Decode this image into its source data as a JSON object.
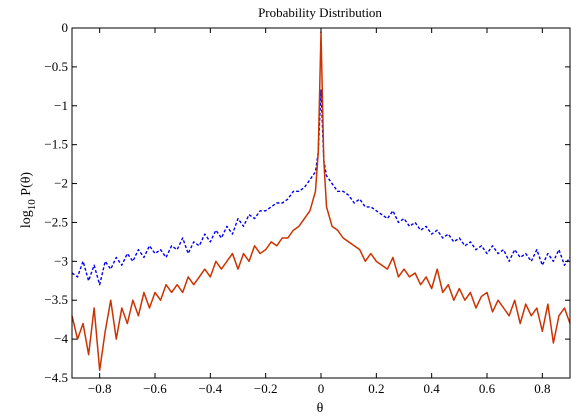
{
  "chart_data": {
    "type": "line",
    "title": "Probability Distribution",
    "xlabel": "θ",
    "ylabel_main": "log",
    "ylabel_sub": "10",
    "ylabel_rest": " P(θ)",
    "xlim": [
      -0.9,
      0.9
    ],
    "ylim": [
      -4.5,
      0
    ],
    "x_ticks": [
      -0.8,
      -0.6,
      -0.4,
      -0.2,
      0,
      0.2,
      0.4,
      0.6,
      0.8
    ],
    "x_tick_labels": [
      "−0.8",
      "−0.6",
      "−0.4",
      "−0.2",
      "0",
      "0.2",
      "0.4",
      "0.6",
      "0.8"
    ],
    "y_ticks": [
      0,
      -0.5,
      -1,
      -1.5,
      -2,
      -2.5,
      -3,
      -3.5,
      -4,
      -4.5
    ],
    "y_tick_labels": [
      "0",
      "−0.5",
      "−1",
      "−1.5",
      "−2",
      "−2.5",
      "−3",
      "−3.5",
      "−4",
      "−4.5"
    ],
    "grid": false,
    "series": [
      {
        "color": "#0000ee",
        "style": "dashed",
        "x": [
          -0.9,
          -0.88,
          -0.86,
          -0.84,
          -0.82,
          -0.8,
          -0.78,
          -0.76,
          -0.74,
          -0.72,
          -0.7,
          -0.68,
          -0.66,
          -0.64,
          -0.62,
          -0.6,
          -0.58,
          -0.56,
          -0.54,
          -0.52,
          -0.5,
          -0.48,
          -0.46,
          -0.44,
          -0.42,
          -0.4,
          -0.38,
          -0.36,
          -0.34,
          -0.32,
          -0.3,
          -0.28,
          -0.26,
          -0.24,
          -0.22,
          -0.2,
          -0.18,
          -0.16,
          -0.14,
          -0.12,
          -0.1,
          -0.08,
          -0.06,
          -0.04,
          -0.02,
          -0.01,
          0,
          0.01,
          0.02,
          0.04,
          0.06,
          0.08,
          0.1,
          0.12,
          0.14,
          0.16,
          0.18,
          0.2,
          0.22,
          0.24,
          0.26,
          0.28,
          0.3,
          0.32,
          0.34,
          0.36,
          0.38,
          0.4,
          0.42,
          0.44,
          0.46,
          0.48,
          0.5,
          0.52,
          0.54,
          0.56,
          0.58,
          0.6,
          0.62,
          0.64,
          0.66,
          0.68,
          0.7,
          0.72,
          0.74,
          0.76,
          0.78,
          0.8,
          0.82,
          0.84,
          0.86,
          0.88,
          0.9
        ],
        "y": [
          -3.15,
          -3.2,
          -3.0,
          -3.25,
          -3.05,
          -3.3,
          -3.0,
          -3.1,
          -2.95,
          -3.05,
          -2.9,
          -3.0,
          -2.85,
          -2.95,
          -2.8,
          -2.9,
          -2.85,
          -2.95,
          -2.8,
          -2.85,
          -2.7,
          -2.9,
          -2.75,
          -2.8,
          -2.65,
          -2.75,
          -2.6,
          -2.7,
          -2.55,
          -2.65,
          -2.45,
          -2.55,
          -2.4,
          -2.45,
          -2.35,
          -2.35,
          -2.3,
          -2.25,
          -2.25,
          -2.2,
          -2.1,
          -2.1,
          -2.05,
          -1.95,
          -1.85,
          -1.6,
          -0.8,
          -1.7,
          -1.9,
          -2.0,
          -2.1,
          -2.1,
          -2.15,
          -2.25,
          -2.2,
          -2.3,
          -2.3,
          -2.35,
          -2.4,
          -2.45,
          -2.35,
          -2.5,
          -2.45,
          -2.55,
          -2.5,
          -2.6,
          -2.55,
          -2.65,
          -2.6,
          -2.7,
          -2.65,
          -2.75,
          -2.7,
          -2.8,
          -2.75,
          -2.85,
          -2.8,
          -2.9,
          -2.8,
          -2.9,
          -2.85,
          -3.0,
          -2.85,
          -2.95,
          -2.9,
          -3.0,
          -2.85,
          -3.05,
          -2.9,
          -3.0,
          -2.85,
          -3.05,
          -2.95
        ]
      },
      {
        "color": "#cc3300",
        "style": "solid",
        "x": [
          -0.9,
          -0.88,
          -0.86,
          -0.84,
          -0.82,
          -0.8,
          -0.78,
          -0.76,
          -0.74,
          -0.72,
          -0.7,
          -0.68,
          -0.66,
          -0.64,
          -0.62,
          -0.6,
          -0.58,
          -0.56,
          -0.54,
          -0.52,
          -0.5,
          -0.48,
          -0.46,
          -0.44,
          -0.42,
          -0.4,
          -0.38,
          -0.36,
          -0.34,
          -0.32,
          -0.3,
          -0.28,
          -0.26,
          -0.24,
          -0.22,
          -0.2,
          -0.18,
          -0.16,
          -0.14,
          -0.12,
          -0.1,
          -0.08,
          -0.06,
          -0.04,
          -0.02,
          -0.01,
          0,
          0.01,
          0.02,
          0.04,
          0.06,
          0.08,
          0.1,
          0.12,
          0.14,
          0.16,
          0.18,
          0.2,
          0.22,
          0.24,
          0.26,
          0.28,
          0.3,
          0.32,
          0.34,
          0.36,
          0.38,
          0.4,
          0.42,
          0.44,
          0.46,
          0.48,
          0.5,
          0.52,
          0.54,
          0.56,
          0.58,
          0.6,
          0.62,
          0.64,
          0.66,
          0.68,
          0.7,
          0.72,
          0.74,
          0.76,
          0.78,
          0.8,
          0.82,
          0.84,
          0.86,
          0.88,
          0.9
        ],
        "y": [
          -3.7,
          -4.0,
          -3.8,
          -4.2,
          -3.6,
          -4.4,
          -3.9,
          -3.5,
          -4.0,
          -3.6,
          -3.8,
          -3.5,
          -3.7,
          -3.4,
          -3.6,
          -3.4,
          -3.5,
          -3.3,
          -3.4,
          -3.3,
          -3.4,
          -3.2,
          -3.3,
          -3.2,
          -3.1,
          -3.2,
          -3.0,
          -3.1,
          -3.0,
          -2.9,
          -3.1,
          -2.9,
          -3.0,
          -2.8,
          -2.9,
          -2.85,
          -2.75,
          -2.8,
          -2.7,
          -2.7,
          -2.6,
          -2.55,
          -2.45,
          -2.35,
          -2.1,
          -1.6,
          -0.05,
          -1.7,
          -2.3,
          -2.55,
          -2.6,
          -2.7,
          -2.75,
          -2.8,
          -2.85,
          -3.0,
          -2.9,
          -3.0,
          -3.05,
          -3.1,
          -2.95,
          -3.2,
          -3.1,
          -3.2,
          -3.15,
          -3.3,
          -3.2,
          -3.35,
          -3.1,
          -3.4,
          -3.3,
          -3.5,
          -3.35,
          -3.5,
          -3.4,
          -3.6,
          -3.45,
          -3.4,
          -3.65,
          -3.5,
          -3.6,
          -3.7,
          -3.5,
          -3.8,
          -3.55,
          -3.7,
          -3.6,
          -3.9,
          -3.55,
          -4.05,
          -3.7,
          -3.6,
          -3.8
        ]
      }
    ]
  }
}
